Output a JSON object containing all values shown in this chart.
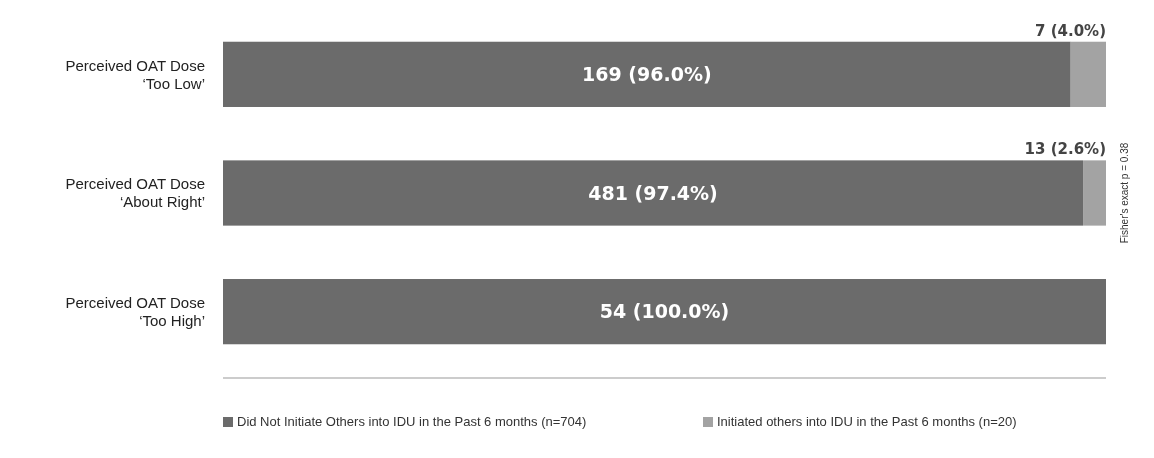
{
  "chart_data": {
    "type": "bar",
    "orientation": "horizontal",
    "stacked": true,
    "categories": [
      "Perceived OAT Dose\n‘Too Low’",
      "Perceived OAT Dose\n‘About Right’",
      "Perceived OAT Dose\n‘Too High’"
    ],
    "series": [
      {
        "name": "Did Not Initiate Others into IDU in the Past 6 months (n=704)",
        "color": "#6b6b6b",
        "values": [
          96.0,
          97.4,
          100.0
        ],
        "value_labels": [
          "169 (96.0%)",
          "481 (97.4%)",
          "54 (100.0%)"
        ]
      },
      {
        "name": "Initiated others into IDU in the Past 6 months (n=20)",
        "color": "#a3a3a3",
        "values": [
          4.0,
          2.6,
          0
        ],
        "value_labels": [
          "7 (4.0%)",
          "13 (2.6%)",
          null
        ]
      }
    ],
    "xlim": [
      0,
      100
    ],
    "legend": "bottom",
    "annotations": [
      "Fisher's exact p = 0.38"
    ]
  }
}
